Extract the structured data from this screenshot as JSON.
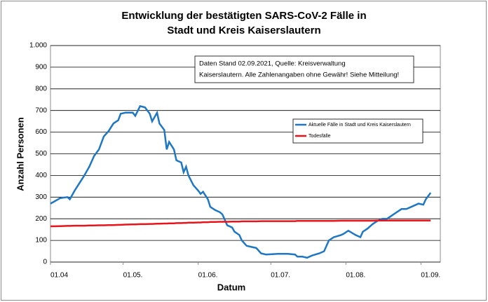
{
  "chart_data": {
    "type": "line",
    "title": [
      "Entwicklung der bestätigten SARS-CoV-2 Fälle in",
      "Stadt und Kreis Kaiserslautern"
    ],
    "xlabel": "Datum",
    "ylabel": "Anzahl Personen",
    "annotation": [
      "Daten Stand 02.09.2021, Quelle: Kreisverwaltung",
      "Kaiserslautern. Alle Zahlenangaben ohne Gewähr! Siehe Mitteilung!"
    ],
    "x": [
      "01.04",
      "05.04",
      "08.04",
      "09.04",
      "11.04",
      "13.04",
      "15.04",
      "17.04",
      "19.04",
      "21.04",
      "23.04",
      "25.04",
      "27.04",
      "29.04",
      "30.04",
      "02.05",
      "05.05",
      "06.05",
      "08.05",
      "10.05",
      "12.05",
      "13.05",
      "15.05",
      "16.05",
      "18.05",
      "19.05",
      "20.05",
      "22.05",
      "23.05",
      "25.05",
      "26.05",
      "27.05",
      "28.05",
      "30.05",
      "01.06",
      "02.06",
      "03.06",
      "05.06",
      "06.06",
      "08.06",
      "10.06",
      "11.06",
      "13.06",
      "15.06",
      "16.06",
      "18.06",
      "19.06",
      "21.06",
      "23.06",
      "25.06",
      "27.06",
      "29.06",
      "04.07",
      "08.07",
      "11.07",
      "12.07",
      "14.07",
      "16.07",
      "18.07",
      "21.07",
      "23.07",
      "25.07",
      "27.07",
      "30.07",
      "31.07",
      "02.08",
      "05.08",
      "07.08",
      "08.08",
      "10.08",
      "12.08",
      "14.08",
      "16.08",
      "18.08",
      "20.08",
      "22.08",
      "24.08",
      "26.08",
      "29.08",
      "31.08",
      "02.09",
      "03.09",
      "05.09"
    ],
    "series": [
      {
        "name": "Aktuelle Fälle in Stadt und Kreis Kaiserslautern",
        "color": "#1f77c4",
        "values": [
          270,
          295,
          300,
          290,
          330,
          365,
          400,
          440,
          490,
          520,
          580,
          605,
          640,
          655,
          685,
          690,
          690,
          675,
          720,
          715,
          685,
          650,
          690,
          640,
          610,
          520,
          555,
          520,
          470,
          460,
          415,
          440,
          400,
          355,
          330,
          315,
          325,
          290,
          255,
          240,
          230,
          220,
          170,
          160,
          140,
          125,
          100,
          75,
          70,
          65,
          40,
          35,
          38,
          38,
          35,
          25,
          25,
          20,
          30,
          40,
          50,
          100,
          115,
          125,
          130,
          145,
          125,
          115,
          140,
          155,
          175,
          190,
          200,
          200,
          215,
          230,
          245,
          245,
          260,
          270,
          265,
          290,
          320
        ]
      },
      {
        "name": "Todesfälle",
        "color": "#e8141c",
        "values": [
          165,
          166,
          167,
          167,
          168,
          168,
          168,
          169,
          169,
          170,
          170,
          171,
          171,
          172,
          172,
          173,
          174,
          174,
          175,
          175,
          176,
          176,
          177,
          177,
          178,
          178,
          179,
          179,
          180,
          180,
          181,
          181,
          182,
          182,
          183,
          183,
          184,
          184,
          185,
          185,
          186,
          186,
          186,
          187,
          187,
          187,
          188,
          188,
          188,
          188,
          189,
          189,
          189,
          189,
          189,
          190,
          190,
          190,
          190,
          190,
          190,
          190,
          190,
          191,
          191,
          191,
          191,
          191,
          191,
          191,
          191,
          192,
          192,
          192,
          192,
          192,
          192,
          192,
          192,
          192,
          192,
          192,
          192
        ]
      }
    ],
    "xlim": [
      "01.04",
      "09.09"
    ],
    "xticks": [
      "01.04",
      {
        "value": "01.05",
        "label": "01.05."
      },
      {
        "value": "01.06",
        "label": "01.06."
      },
      {
        "value": "01.07",
        "label": "01.07."
      },
      {
        "value": "01.08",
        "label": "01.08."
      },
      {
        "value": "01.09",
        "label": "01.09."
      }
    ],
    "ylim": [
      0,
      1000
    ],
    "yticks": [
      0,
      100,
      200,
      300,
      400,
      500,
      600,
      700,
      800,
      900,
      {
        "value": 1000,
        "label": "1.000"
      }
    ],
    "grid": true,
    "legend": "right"
  }
}
